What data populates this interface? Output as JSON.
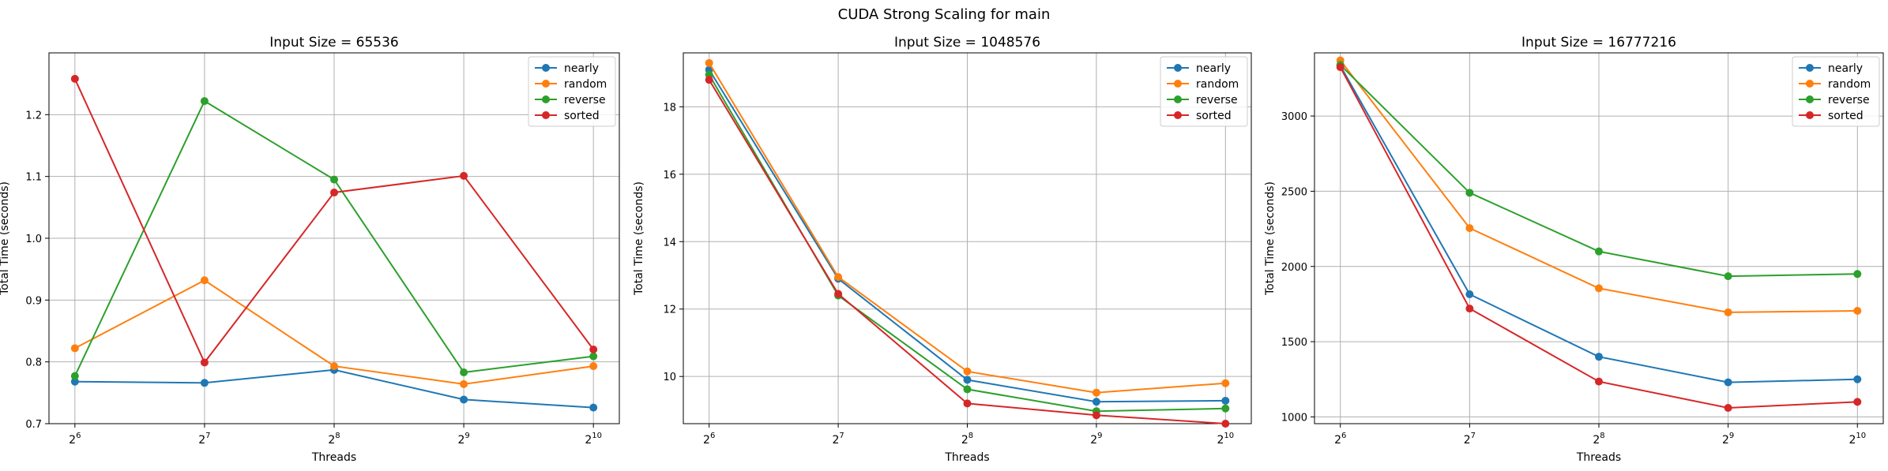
{
  "suptitle": "CUDA Strong Scaling for main",
  "series_colors": {
    "nearly": "#1f77b4",
    "random": "#ff7f0e",
    "reverse": "#2ca02c",
    "sorted": "#d62728"
  },
  "chart_data": [
    {
      "type": "line",
      "title": "Input Size = 65536",
      "xlabel": "Threads",
      "ylabel": "Total Time (seconds)",
      "x": [
        64,
        128,
        256,
        512,
        1024
      ],
      "xscale": "log2",
      "xtick_labels": [
        {
          "base": "2",
          "exp": "6"
        },
        {
          "base": "2",
          "exp": "7"
        },
        {
          "base": "2",
          "exp": "8"
        },
        {
          "base": "2",
          "exp": "9"
        },
        {
          "base": "2",
          "exp": "10"
        }
      ],
      "ylim": [
        0.7,
        1.3
      ],
      "yticks": [
        0.7,
        0.8,
        0.9,
        1.0,
        1.1,
        1.2
      ],
      "ytick_labels": [
        "0.7",
        "0.8",
        "0.9",
        "1.0",
        "1.1",
        "1.2"
      ],
      "grid": true,
      "legend_position": "top-right",
      "series": [
        {
          "name": "nearly",
          "values": [
            0.768,
            0.766,
            0.787,
            0.739,
            0.726
          ]
        },
        {
          "name": "random",
          "values": [
            0.822,
            0.932,
            0.793,
            0.764,
            0.793
          ]
        },
        {
          "name": "reverse",
          "values": [
            0.777,
            1.222,
            1.095,
            0.783,
            0.809
          ]
        },
        {
          "name": "sorted",
          "values": [
            1.258,
            0.799,
            1.074,
            1.101,
            0.82
          ]
        }
      ]
    },
    {
      "type": "line",
      "title": "Input Size = 1048576",
      "xlabel": "Threads",
      "ylabel": "Total Time (seconds)",
      "x": [
        64,
        128,
        256,
        512,
        1024
      ],
      "xscale": "log2",
      "xtick_labels": [
        {
          "base": "2",
          "exp": "6"
        },
        {
          "base": "2",
          "exp": "7"
        },
        {
          "base": "2",
          "exp": "8"
        },
        {
          "base": "2",
          "exp": "9"
        },
        {
          "base": "2",
          "exp": "10"
        }
      ],
      "ylim": [
        8.6,
        19.6
      ],
      "yticks": [
        10,
        12,
        14,
        16,
        18
      ],
      "ytick_labels": [
        "10",
        "12",
        "14",
        "16",
        "18"
      ],
      "grid": true,
      "legend_position": "top-right",
      "series": [
        {
          "name": "nearly",
          "values": [
            19.1,
            12.9,
            9.9,
            9.25,
            9.28
          ]
        },
        {
          "name": "random",
          "values": [
            19.3,
            12.95,
            10.15,
            9.52,
            9.8
          ]
        },
        {
          "name": "reverse",
          "values": [
            18.95,
            12.4,
            9.62,
            8.97,
            9.05
          ]
        },
        {
          "name": "sorted",
          "values": [
            18.8,
            12.45,
            9.2,
            8.85,
            8.6
          ]
        }
      ]
    },
    {
      "type": "line",
      "title": "Input Size = 16777216",
      "xlabel": "Threads",
      "ylabel": "Total Time (seconds)",
      "x": [
        64,
        128,
        256,
        512,
        1024
      ],
      "xscale": "log2",
      "xtick_labels": [
        {
          "base": "2",
          "exp": "6"
        },
        {
          "base": "2",
          "exp": "7"
        },
        {
          "base": "2",
          "exp": "8"
        },
        {
          "base": "2",
          "exp": "9"
        },
        {
          "base": "2",
          "exp": "10"
        }
      ],
      "ylim": [
        955,
        3420
      ],
      "yticks": [
        1000,
        1500,
        2000,
        2500,
        3000
      ],
      "ytick_labels": [
        "1000",
        "1500",
        "2000",
        "2500",
        "3000"
      ],
      "grid": true,
      "legend_position": "top-right",
      "series": [
        {
          "name": "nearly",
          "values": [
            3335,
            1815,
            1400,
            1230,
            1250
          ]
        },
        {
          "name": "random",
          "values": [
            3370,
            2255,
            1855,
            1695,
            1705
          ]
        },
        {
          "name": "reverse",
          "values": [
            3340,
            2490,
            2100,
            1935,
            1950
          ]
        },
        {
          "name": "sorted",
          "values": [
            3325,
            1720,
            1235,
            1060,
            1100
          ]
        }
      ]
    }
  ]
}
